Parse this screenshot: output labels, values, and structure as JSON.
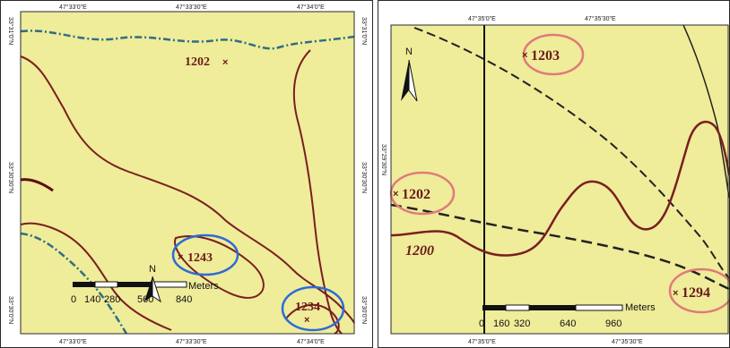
{
  "colors": {
    "map_background": "#efec9a",
    "contour": "#7a1f1f",
    "river": "#2f6f80",
    "road": "#222222",
    "blue_highlight": "#2d6bd6",
    "red_highlight": "#e07a7a"
  },
  "left_map": {
    "top_ticks": [
      "47°33'0\"E",
      "47°33'30\"E",
      "47°34'0\"E"
    ],
    "bottom_ticks": [
      "47°33'0\"E",
      "47°33'30\"E",
      "47°34'0\"E"
    ],
    "left_ticks": [
      "33°31'0\"N",
      "33°30'30\"N",
      "33°30'0\"N"
    ],
    "right_ticks": [
      "33°31'0\"N",
      "33°30'30\"N",
      "33°30'0\"N"
    ],
    "labels": [
      {
        "id": "1202",
        "text": "1202",
        "highlight": "none"
      },
      {
        "id": "1243",
        "text": "1243",
        "highlight": "blue"
      },
      {
        "id": "1234",
        "text": "1234",
        "highlight": "blue"
      }
    ],
    "north_arrow": {
      "letter": "N",
      "icon": "north-arrow-icon"
    },
    "scale_bar": {
      "ticks": [
        "0",
        "140",
        "280",
        "560",
        "840"
      ],
      "unit": "Meters"
    }
  },
  "right_map": {
    "top_ticks": [
      "47°35'0\"E",
      "47°35'30\"E"
    ],
    "bottom_ticks": [
      "47°35'0\"E",
      "47°35'30\"E"
    ],
    "left_ticks": [
      "33°29'30\"N"
    ],
    "labels": [
      {
        "id": "1203",
        "text": "1203",
        "highlight": "red"
      },
      {
        "id": "1202",
        "text": "1202",
        "highlight": "red"
      },
      {
        "id": "1200",
        "text": "1200",
        "highlight": "none"
      },
      {
        "id": "1294",
        "text": "1294",
        "highlight": "red"
      }
    ],
    "north_arrow": {
      "letter": "N",
      "icon": "north-arrow-icon"
    },
    "scale_bar": {
      "ticks": [
        "0",
        "160",
        "320",
        "640",
        "960"
      ],
      "unit": "Meters"
    }
  }
}
